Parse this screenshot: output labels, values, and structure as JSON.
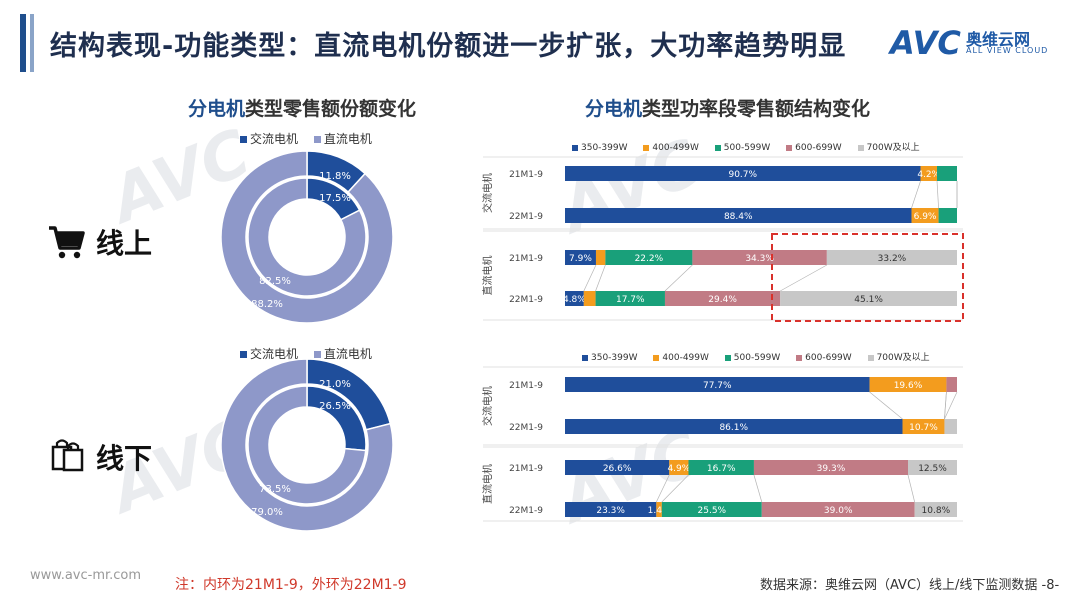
{
  "title": "结构表现-功能类型：直流电机份额进一步扩张，大功率趋势明显",
  "logo": {
    "brand": "AVC",
    "cn": "奥维云网",
    "en": "ALL VIEW CLOUD"
  },
  "left_title": {
    "highlight": "分电机",
    "rest": "类型零售额份额变化"
  },
  "right_title": {
    "highlight": "分电机",
    "rest": "类型功率段零售额结构变化"
  },
  "channels": {
    "online": "线上",
    "offline": "线下"
  },
  "donut_legend": {
    "ac": "交流电机",
    "dc": "直流电机"
  },
  "power_legend": [
    "350-399W",
    "400-499W",
    "500-599W",
    "600-699W",
    "700W及以上"
  ],
  "colors": {
    "ac": "#1f4e9b",
    "dc": "#8e98c9",
    "p1": "#1f4e9b",
    "p2": "#f39c1e",
    "p3": "#19a07a",
    "p4": "#c17b85",
    "p5": "#c7c7c7"
  },
  "group_labels": {
    "ac": "交流电机",
    "dc": "直流电机"
  },
  "footer": {
    "website": "www.avc-mr.com",
    "note": "注：内环为21M1-9，外环为22M1-9",
    "source": "数据来源：奥维云网（AVC）线上/线下监测数据 -8-"
  },
  "chart_data": [
    {
      "type": "pie",
      "name": "online-donut",
      "legend": [
        "交流电机",
        "直流电机"
      ],
      "inner": {
        "period": "21M1-9",
        "values": [
          17.5,
          82.5
        ],
        "labels": [
          "17.5%",
          "82.5%"
        ]
      },
      "outer": {
        "period": "22M1-9",
        "values": [
          11.8,
          88.2
        ],
        "labels": [
          "11.8%",
          "88.2%"
        ]
      }
    },
    {
      "type": "pie",
      "name": "offline-donut",
      "legend": [
        "交流电机",
        "直流电机"
      ],
      "inner": {
        "period": "21M1-9",
        "values": [
          26.5,
          73.5
        ],
        "labels": [
          "26.5%",
          "73.5%"
        ]
      },
      "outer": {
        "period": "22M1-9",
        "values": [
          21.0,
          79.0
        ],
        "labels": [
          "21.0%",
          "79.0%"
        ]
      }
    },
    {
      "type": "bar",
      "name": "online-power",
      "stacked": true,
      "orientation": "horizontal",
      "series_names": [
        "350-399W",
        "400-499W",
        "500-599W",
        "600-699W",
        "700W及以上"
      ],
      "groups": [
        {
          "group": "交流电机",
          "rows": [
            {
              "label": "21M1-9",
              "values": [
                90.7,
                4.2,
                5.1,
                0,
                0
              ],
              "labels": [
                "90.7%",
                "4.2%",
                "",
                "",
                ""
              ]
            },
            {
              "label": "22M1-9",
              "values": [
                88.4,
                6.9,
                4.7,
                0,
                0
              ],
              "labels": [
                "88.4%",
                "6.9%",
                "",
                "",
                ""
              ]
            }
          ]
        },
        {
          "group": "直流电机",
          "rows": [
            {
              "label": "21M1-9",
              "values": [
                7.9,
                2.4,
                22.2,
                34.3,
                33.2
              ],
              "labels": [
                "7.9%",
                "",
                "22.2%",
                "34.3%",
                "33.2%"
              ]
            },
            {
              "label": "22M1-9",
              "values": [
                4.8,
                3.0,
                17.7,
                29.4,
                45.1
              ],
              "labels": [
                "4.8%",
                "",
                "17.7%",
                "29.4%",
                "45.1%"
              ]
            }
          ]
        }
      ]
    },
    {
      "type": "bar",
      "name": "offline-power",
      "stacked": true,
      "orientation": "horizontal",
      "series_names": [
        "350-399W",
        "400-499W",
        "500-599W",
        "600-699W",
        "700W及以上"
      ],
      "groups": [
        {
          "group": "交流电机",
          "rows": [
            {
              "label": "21M1-9",
              "values": [
                77.7,
                19.6,
                0,
                2.7,
                0
              ],
              "labels": [
                "77.7%",
                "19.6%",
                "",
                "",
                ""
              ]
            },
            {
              "label": "22M1-9",
              "values": [
                86.1,
                10.7,
                0,
                0,
                3.2
              ],
              "labels": [
                "86.1%",
                "10.7%",
                "",
                "",
                ""
              ]
            }
          ]
        },
        {
          "group": "直流电机",
          "rows": [
            {
              "label": "21M1-9",
              "values": [
                26.6,
                4.9,
                16.7,
                39.3,
                12.5
              ],
              "labels": [
                "26.6%",
                "4.9%",
                "16.7%",
                "39.3%",
                "12.5%"
              ]
            },
            {
              "label": "22M1-9",
              "values": [
                23.3,
                1.4,
                25.5,
                39.0,
                10.8
              ],
              "labels": [
                "23.3%",
                "1.4%",
                "25.5%",
                "39.0%",
                "10.8%"
              ]
            }
          ]
        }
      ]
    }
  ]
}
